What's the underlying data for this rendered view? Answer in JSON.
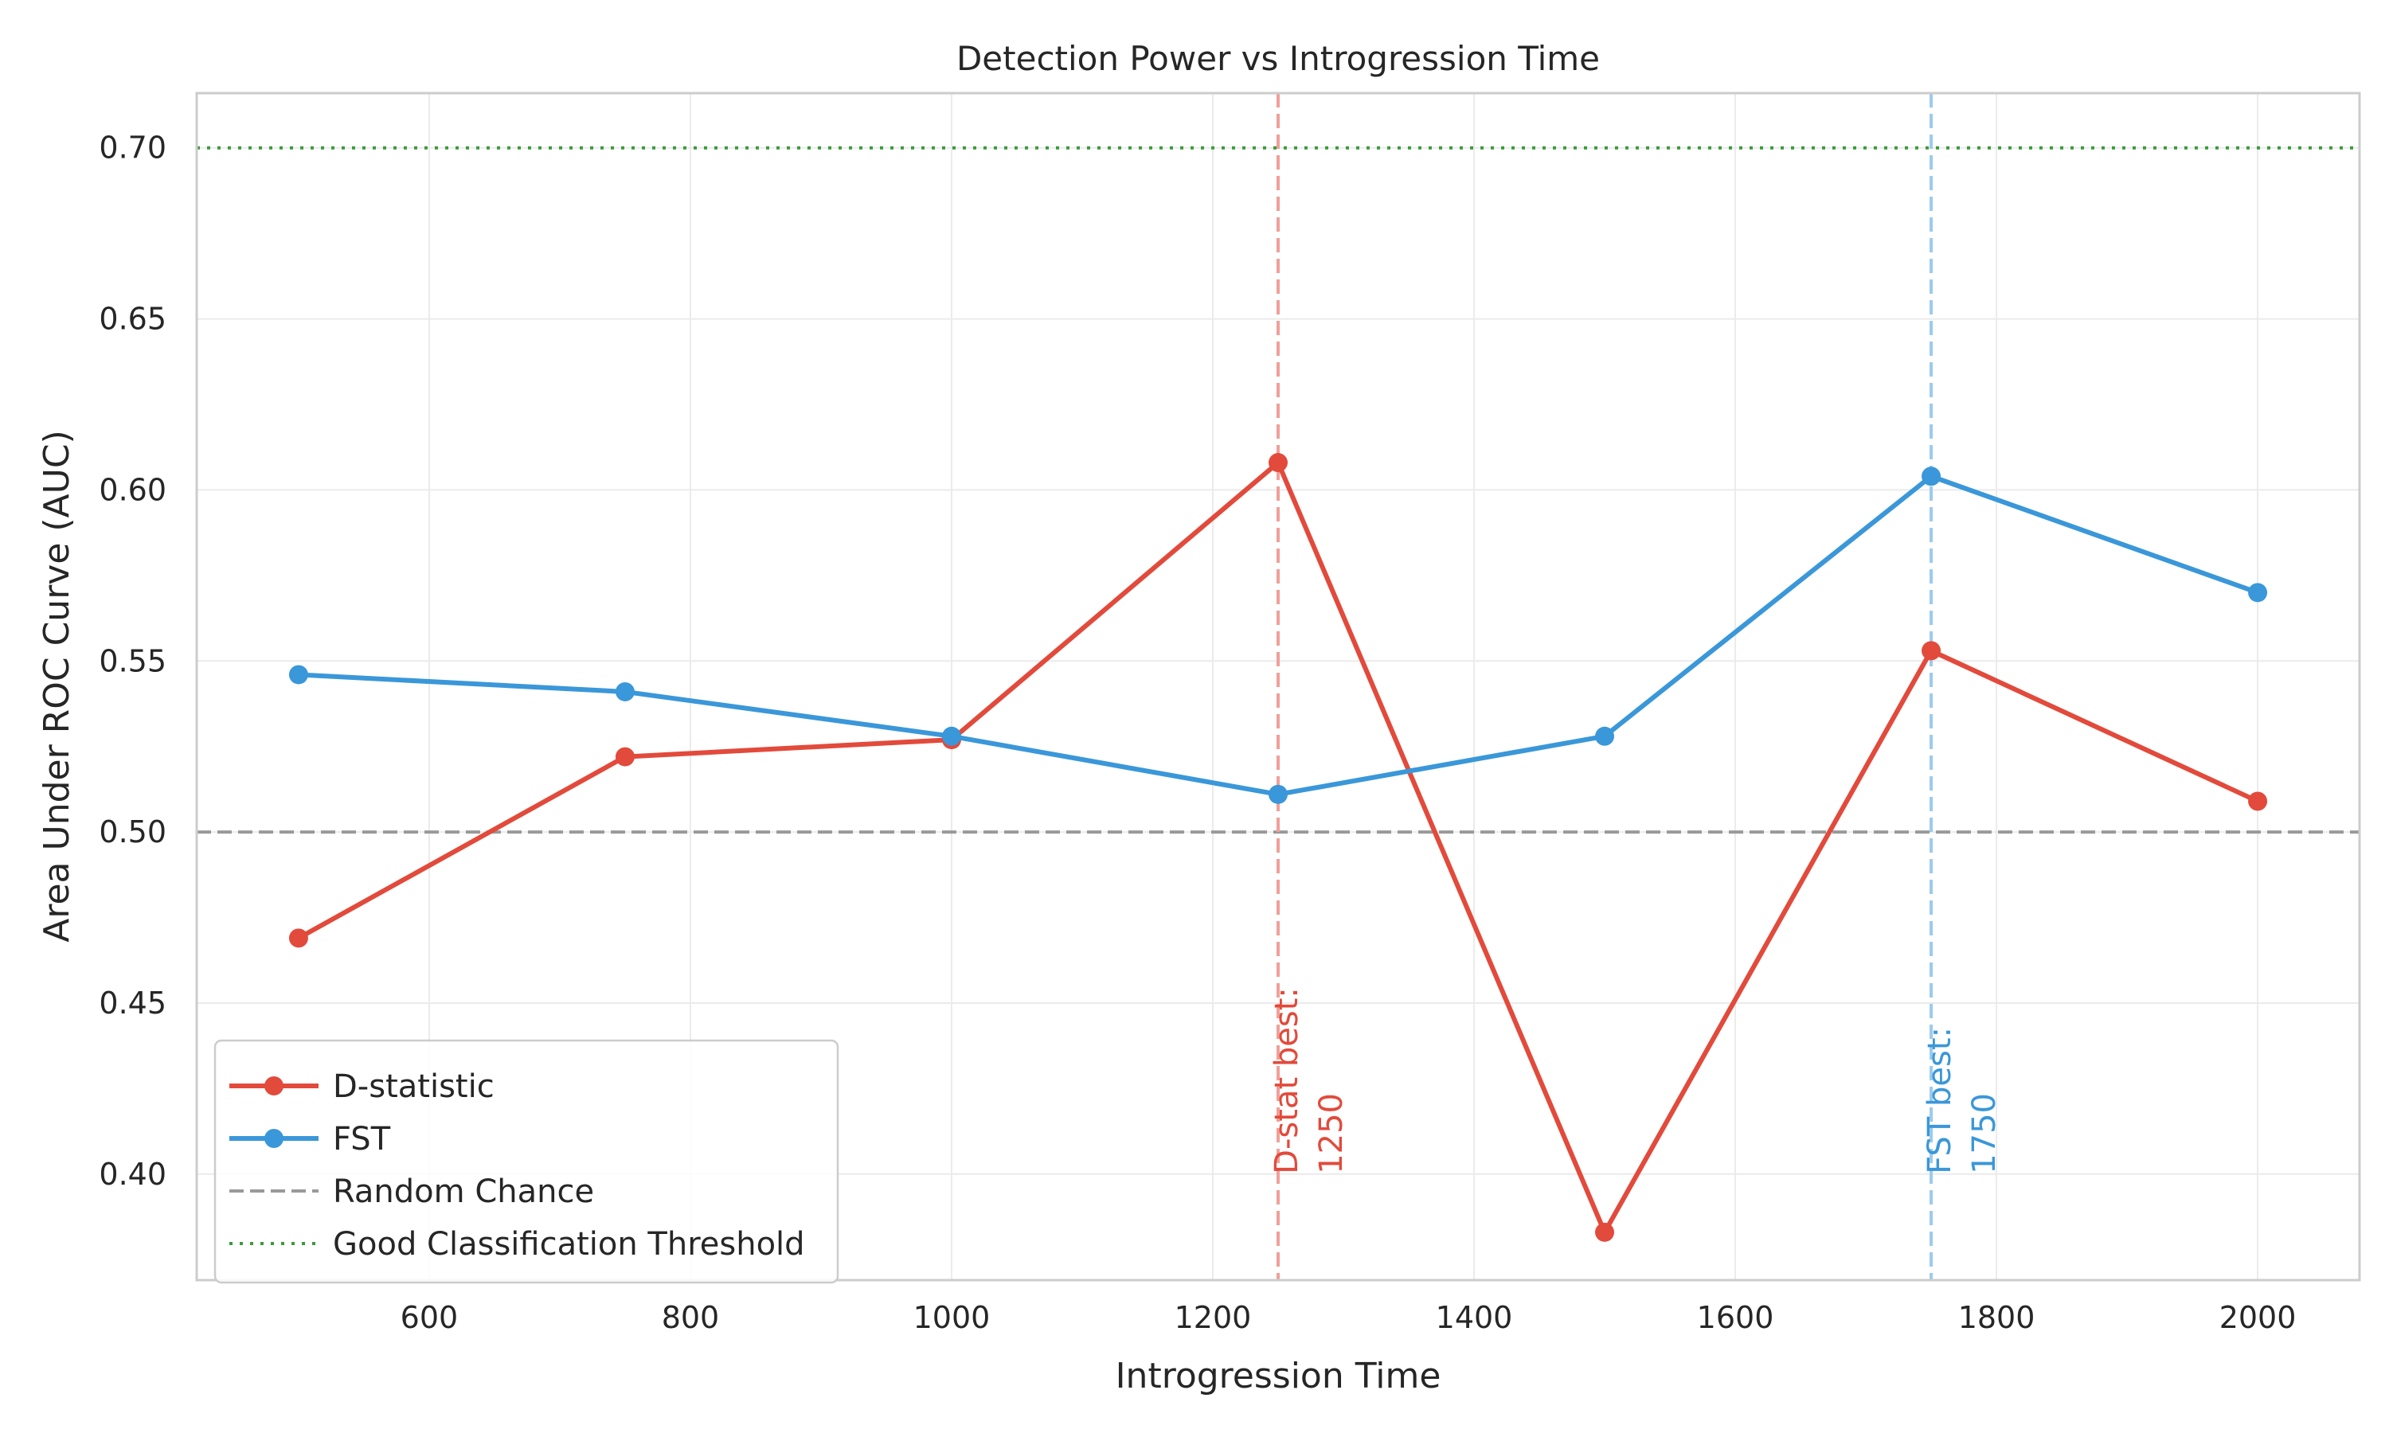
{
  "chart_data": {
    "type": "line",
    "title": "Detection Power vs Introgression Time",
    "xlabel": "Introgression Time",
    "ylabel": "Area Under ROC Curve (AUC)",
    "xlim": [
      422,
      2078
    ],
    "ylim": [
      0.369,
      0.716
    ],
    "x_ticks": [
      600,
      800,
      1000,
      1200,
      1400,
      1600,
      1800,
      2000
    ],
    "x_tick_labels": [
      "600",
      "800",
      "1000",
      "1200",
      "1400",
      "1600",
      "1800",
      "2000"
    ],
    "y_ticks": [
      0.4,
      0.45,
      0.5,
      0.55,
      0.6,
      0.65,
      0.7
    ],
    "y_tick_labels": [
      "0.40",
      "0.45",
      "0.50",
      "0.55",
      "0.60",
      "0.65",
      "0.70"
    ],
    "grid": true,
    "legend_position": "lower-left",
    "x": [
      500,
      750,
      1000,
      1250,
      1500,
      1750,
      2000
    ],
    "series": [
      {
        "name": "D-statistic",
        "color": "#e24a3b",
        "marker": "circle",
        "values": [
          0.469,
          0.522,
          0.527,
          0.608,
          0.383,
          0.553,
          0.509
        ]
      },
      {
        "name": "FST",
        "color": "#3a97d9",
        "marker": "circle",
        "values": [
          0.546,
          0.541,
          0.528,
          0.511,
          0.528,
          0.604,
          0.57
        ]
      }
    ],
    "reference_lines": [
      {
        "name": "Random Chance",
        "orientation": "horizontal",
        "value": 0.5,
        "style": "dashed",
        "color": "#999999"
      },
      {
        "name": "Good Classification Threshold",
        "orientation": "horizontal",
        "value": 0.7,
        "style": "dotted",
        "color": "#3c9a3c"
      },
      {
        "name": "",
        "orientation": "vertical",
        "value": 1250,
        "style": "dashed",
        "color": "#f0a098"
      },
      {
        "name": "",
        "orientation": "vertical",
        "value": 1750,
        "style": "dashed",
        "color": "#9ccbee"
      }
    ],
    "annotations": [
      {
        "x": 1250,
        "y": 0.4,
        "lines": [
          "D-stat best:",
          "1250"
        ],
        "color": "#e24a3b"
      },
      {
        "x": 1750,
        "y": 0.4,
        "lines": [
          "FST best:",
          "1750"
        ],
        "color": "#3a97d9"
      }
    ]
  }
}
